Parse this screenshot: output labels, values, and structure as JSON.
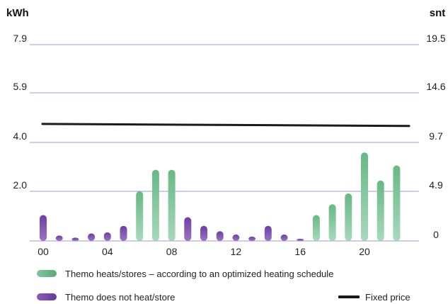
{
  "chart_data": {
    "type": "bar",
    "left_unit": "kWh",
    "right_unit": "snt",
    "left_ticks": [
      "7.9",
      "5.9",
      "4.0",
      "2.0"
    ],
    "right_ticks": [
      "19.5",
      "14.6",
      "9.7",
      "4.9",
      "0"
    ],
    "x_ticks": [
      "00",
      "04",
      "08",
      "12",
      "16",
      "20"
    ],
    "x": [
      "00",
      "01",
      "02",
      "03",
      "04",
      "05",
      "06",
      "07",
      "08",
      "09",
      "10",
      "11",
      "12",
      "13",
      "14",
      "15",
      "16",
      "17",
      "18",
      "19",
      "20",
      "21",
      "22"
    ],
    "ylim_left": [
      0,
      9.2
    ],
    "ylim_right": [
      0,
      19.5
    ],
    "series": [
      {
        "name": "Themo heats/stores – according to an optimized heating schedule",
        "color": "#72c08f",
        "points": [
          {
            "x": "06",
            "value": 2.3
          },
          {
            "x": "07",
            "value": 3.3
          },
          {
            "x": "08",
            "value": 3.3
          },
          {
            "x": "17",
            "value": 1.2
          },
          {
            "x": "18",
            "value": 1.7
          },
          {
            "x": "19",
            "value": 2.2
          },
          {
            "x": "20",
            "value": 4.1
          },
          {
            "x": "21",
            "value": 2.8
          },
          {
            "x": "22",
            "value": 3.5
          }
        ]
      },
      {
        "name": "Themo does not heat/store",
        "color": "#7a4ea7",
        "points": [
          {
            "x": "00",
            "value": 1.2
          },
          {
            "x": "01",
            "value": 0.25
          },
          {
            "x": "02",
            "value": 0.15
          },
          {
            "x": "03",
            "value": 0.35
          },
          {
            "x": "04",
            "value": 0.4
          },
          {
            "x": "05",
            "value": 0.7
          },
          {
            "x": "09",
            "value": 1.1
          },
          {
            "x": "10",
            "value": 0.7
          },
          {
            "x": "11",
            "value": 0.45
          },
          {
            "x": "12",
            "value": 0.3
          },
          {
            "x": "13",
            "value": 0.2
          },
          {
            "x": "14",
            "value": 0.7
          },
          {
            "x": "15",
            "value": 0.3
          },
          {
            "x": "16",
            "value": 0.1
          }
        ]
      }
    ],
    "fixed_price": {
      "name": "Fixed price",
      "start": 11.5,
      "end": 11.3,
      "color": "#1a1a1a"
    }
  },
  "legend": {
    "green_label": "Themo heats/stores – according to an optimized heating schedule",
    "purple_label": "Themo does not heat/store",
    "black_label": "Fixed price"
  }
}
